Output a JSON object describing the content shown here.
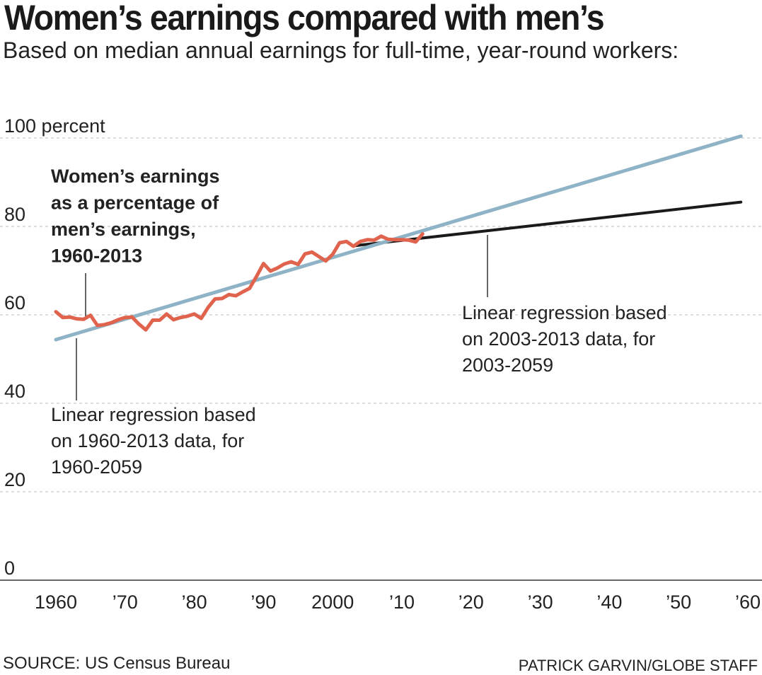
{
  "title": "Women’s earnings compared with men’s",
  "subtitle": "Based on median annual earnings for full-time, year-round workers:",
  "source": "SOURCE: US Census Bureau",
  "credit": "PATRICK GARVIN/GLOBE STAFF",
  "colors": {
    "actual": "#e0634e",
    "regression_full": "#8fb3c6",
    "regression_recent": "#1a1a1a",
    "grid": "#bbbbbb"
  },
  "chart_data": {
    "type": "line",
    "title": "Women’s earnings compared with men’s",
    "subtitle": "Based on median annual earnings for full-time, year-round workers:",
    "xlim": [
      1960,
      2060
    ],
    "ylim": [
      0,
      100
    ],
    "grid": true,
    "y_ticks": [
      {
        "value": 0,
        "label": "0"
      },
      {
        "value": 20,
        "label": "20"
      },
      {
        "value": 40,
        "label": "40"
      },
      {
        "value": 60,
        "label": "60"
      },
      {
        "value": 80,
        "label": "80"
      },
      {
        "value": 100,
        "label": "100 percent"
      }
    ],
    "x_ticks": [
      {
        "value": 1960,
        "label": "1960"
      },
      {
        "value": 1970,
        "label": "’70"
      },
      {
        "value": 1980,
        "label": "’80"
      },
      {
        "value": 1990,
        "label": "’90"
      },
      {
        "value": 2000,
        "label": "2000"
      },
      {
        "value": 2010,
        "label": "’10"
      },
      {
        "value": 2020,
        "label": "’20"
      },
      {
        "value": 2030,
        "label": "’30"
      },
      {
        "value": 2040,
        "label": "’40"
      },
      {
        "value": 2050,
        "label": "’50"
      },
      {
        "value": 2060,
        "label": "’60"
      }
    ],
    "series": [
      {
        "key": "actual",
        "x": [
          1960,
          1961,
          1962,
          1963,
          1964,
          1965,
          1966,
          1967,
          1968,
          1969,
          1970,
          1971,
          1972,
          1973,
          1974,
          1975,
          1976,
          1977,
          1978,
          1979,
          1980,
          1981,
          1982,
          1983,
          1984,
          1985,
          1986,
          1987,
          1988,
          1989,
          1990,
          1991,
          1992,
          1993,
          1994,
          1995,
          1996,
          1997,
          1998,
          1999,
          2000,
          2001,
          2002,
          2003,
          2004,
          2005,
          2006,
          2007,
          2008,
          2009,
          2010,
          2011,
          2012,
          2013
        ],
        "y": [
          60.7,
          59.4,
          59.5,
          59.1,
          59.0,
          59.9,
          57.6,
          57.8,
          58.2,
          58.9,
          59.4,
          59.5,
          57.9,
          56.6,
          58.8,
          58.8,
          60.2,
          58.9,
          59.4,
          59.7,
          60.2,
          59.2,
          61.7,
          63.6,
          63.7,
          64.6,
          64.3,
          65.2,
          66.0,
          68.7,
          71.6,
          69.9,
          70.6,
          71.5,
          72.0,
          71.4,
          73.8,
          74.2,
          73.2,
          72.2,
          73.7,
          76.3,
          76.6,
          75.5,
          76.6,
          77.0,
          76.9,
          77.8,
          77.1,
          77.0,
          77.0,
          76.9,
          76.5,
          78.3
        ]
      },
      {
        "key": "regression_full",
        "x": [
          1960,
          2059
        ],
        "y": [
          54.4,
          100.4
        ]
      },
      {
        "key": "regression_recent",
        "x": [
          2003,
          2059
        ],
        "y": [
          75.6,
          85.5
        ]
      }
    ],
    "annotations": {
      "actual": [
        "Women’s earnings",
        "as a percentage of",
        "men’s earnings,",
        "1960-2013"
      ],
      "regression_full": [
        "Linear regression based",
        "on 1960-2013 data, for",
        "1960-2059"
      ],
      "regression_recent": [
        "Linear regression based",
        "on 2003-2013 data, for",
        "2003-2059"
      ]
    }
  }
}
